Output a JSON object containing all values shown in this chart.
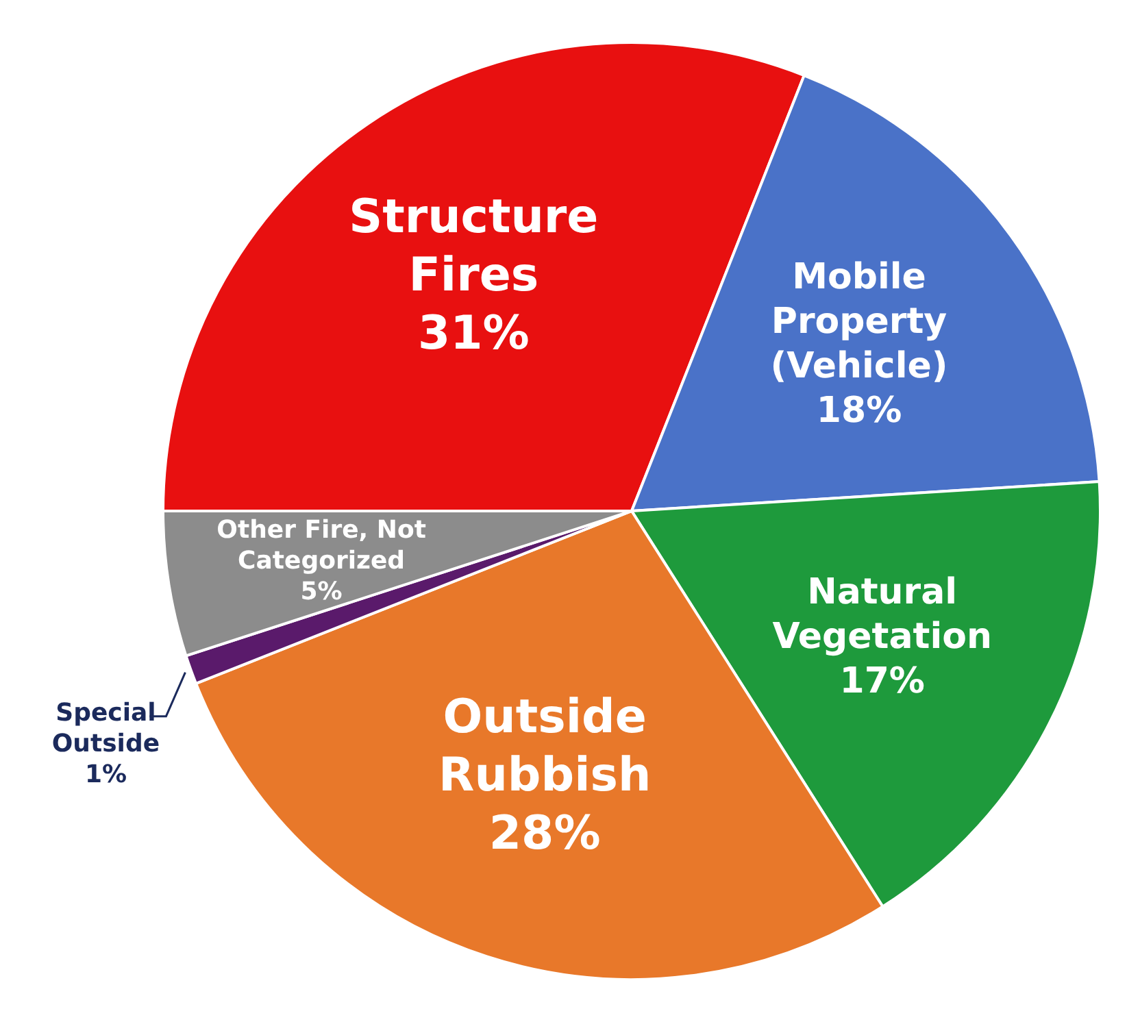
{
  "chart_data": {
    "type": "pie",
    "categories": [
      "Structure Fires",
      "Mobile Property (Vehicle)",
      "Natural Vegetation",
      "Outside Rubbish",
      "Special Outside",
      "Other Fire, Not Categorized"
    ],
    "values": [
      31,
      18,
      17,
      28,
      1,
      5
    ],
    "value_labels": [
      "31%",
      "18%",
      "17%",
      "28%",
      "1%",
      "5%"
    ],
    "colors": [
      "#e81010",
      "#4a72c8",
      "#1e9a3c",
      "#e8782a",
      "#5a1a6b",
      "#8c8c8c"
    ],
    "legend": false
  }
}
